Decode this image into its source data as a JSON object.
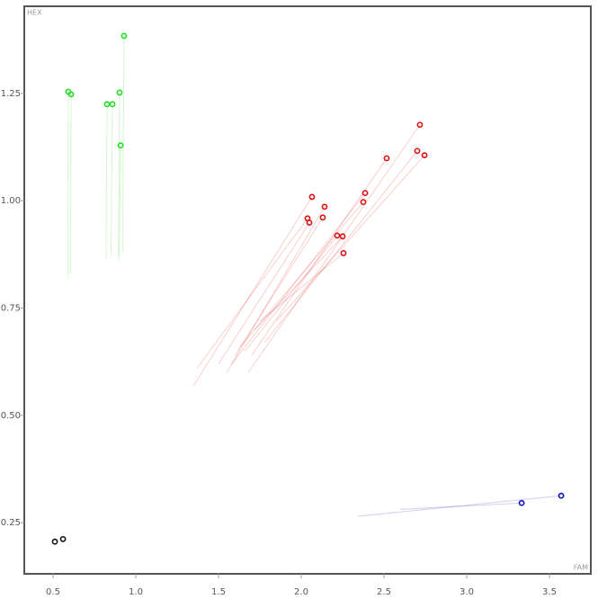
{
  "chart_data": {
    "type": "scatter",
    "x_label": "FAM",
    "y_label": "HEX",
    "xlim": [
      0.326,
      3.75
    ],
    "ylim": [
      0.131,
      1.453
    ],
    "xticks": [
      0.5,
      {
        "value": 1,
        "label": "1.0"
      },
      1.5,
      {
        "value": 2,
        "label": "2.0"
      },
      2.5,
      {
        "value": 3,
        "label": "3.0"
      },
      3.5
    ],
    "yticks": [
      0.25,
      {
        "value": 0.5,
        "label": "0.50"
      },
      0.75,
      {
        "value": 1,
        "label": "1.00"
      },
      1.25
    ],
    "series": [
      {
        "color": "#22dd22",
        "x": [
          0.592,
          0.609,
          0.826,
          0.859,
          0.902,
          0.908,
          0.929
        ],
        "y": [
          1.254,
          1.248,
          1.225,
          1.225,
          1.252,
          1.129,
          1.384
        ],
        "trail_x": [
          0.59,
          0.605,
          0.82,
          0.85,
          0.895,
          0.9,
          0.92
        ],
        "trail_y": [
          0.82,
          0.83,
          0.865,
          0.87,
          0.86,
          0.87,
          0.88
        ]
      },
      {
        "color": "#dd1111",
        "x": [
          2.065,
          2.038,
          2.049,
          2.141,
          2.13,
          2.217,
          2.25,
          2.255,
          2.386,
          2.375,
          2.516,
          2.717,
          2.701,
          2.745
        ],
        "y": [
          1.009,
          0.959,
          0.949,
          0.986,
          0.961,
          0.919,
          0.917,
          0.878,
          1.018,
          0.997,
          1.099,
          1.177,
          1.116,
          1.106
        ],
        "trail_x": [
          1.35,
          1.37,
          1.5,
          1.55,
          1.6,
          1.66,
          1.72,
          1.75,
          1.58,
          1.63,
          1.7,
          1.68,
          1.78,
          1.85
        ],
        "trail_y": [
          0.57,
          0.61,
          0.62,
          0.6,
          0.64,
          0.65,
          0.7,
          0.72,
          0.62,
          0.66,
          0.64,
          0.6,
          0.67,
          0.72
        ]
      },
      {
        "color": "#1111bb",
        "x": [
          3.332,
          3.571
        ],
        "y": [
          0.296,
          0.313
        ],
        "trail_x": [
          2.598,
          2.342
        ],
        "trail_y": [
          0.281,
          0.265
        ]
      },
      {
        "color": "#111111",
        "x": [
          0.511,
          0.56
        ],
        "y": [
          0.206,
          0.212
        ]
      }
    ]
  }
}
